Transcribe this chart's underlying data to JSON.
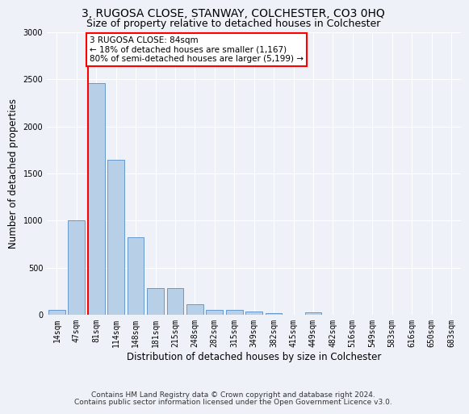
{
  "title": "3, RUGOSA CLOSE, STANWAY, COLCHESTER, CO3 0HQ",
  "subtitle": "Size of property relative to detached houses in Colchester",
  "xlabel": "Distribution of detached houses by size in Colchester",
  "ylabel": "Number of detached properties",
  "categories": [
    "14sqm",
    "47sqm",
    "81sqm",
    "114sqm",
    "148sqm",
    "181sqm",
    "215sqm",
    "248sqm",
    "282sqm",
    "315sqm",
    "349sqm",
    "382sqm",
    "415sqm",
    "449sqm",
    "482sqm",
    "516sqm",
    "549sqm",
    "583sqm",
    "616sqm",
    "650sqm",
    "683sqm"
  ],
  "values": [
    55,
    1000,
    2460,
    1650,
    820,
    285,
    285,
    115,
    50,
    50,
    35,
    20,
    0,
    30,
    0,
    0,
    0,
    0,
    0,
    0,
    0
  ],
  "bar_color": "#b8cfe8",
  "bar_edge_color": "#6699cc",
  "vline_color": "red",
  "vline_x": 2.5,
  "annotation_line1": "3 RUGOSA CLOSE: 84sqm",
  "annotation_line2": "← 18% of detached houses are smaller (1,167)",
  "annotation_line3": "80% of semi-detached houses are larger (5,199) →",
  "annotation_box_color": "white",
  "annotation_box_edge_color": "red",
  "ylim": [
    0,
    3000
  ],
  "yticks": [
    0,
    500,
    1000,
    1500,
    2000,
    2500,
    3000
  ],
  "footer_line1": "Contains HM Land Registry data © Crown copyright and database right 2024.",
  "footer_line2": "Contains public sector information licensed under the Open Government Licence v3.0.",
  "background_color": "#eef2f8",
  "title_fontsize": 10,
  "subtitle_fontsize": 9,
  "axis_label_fontsize": 8.5,
  "tick_fontsize": 7,
  "footer_fontsize": 6.5
}
